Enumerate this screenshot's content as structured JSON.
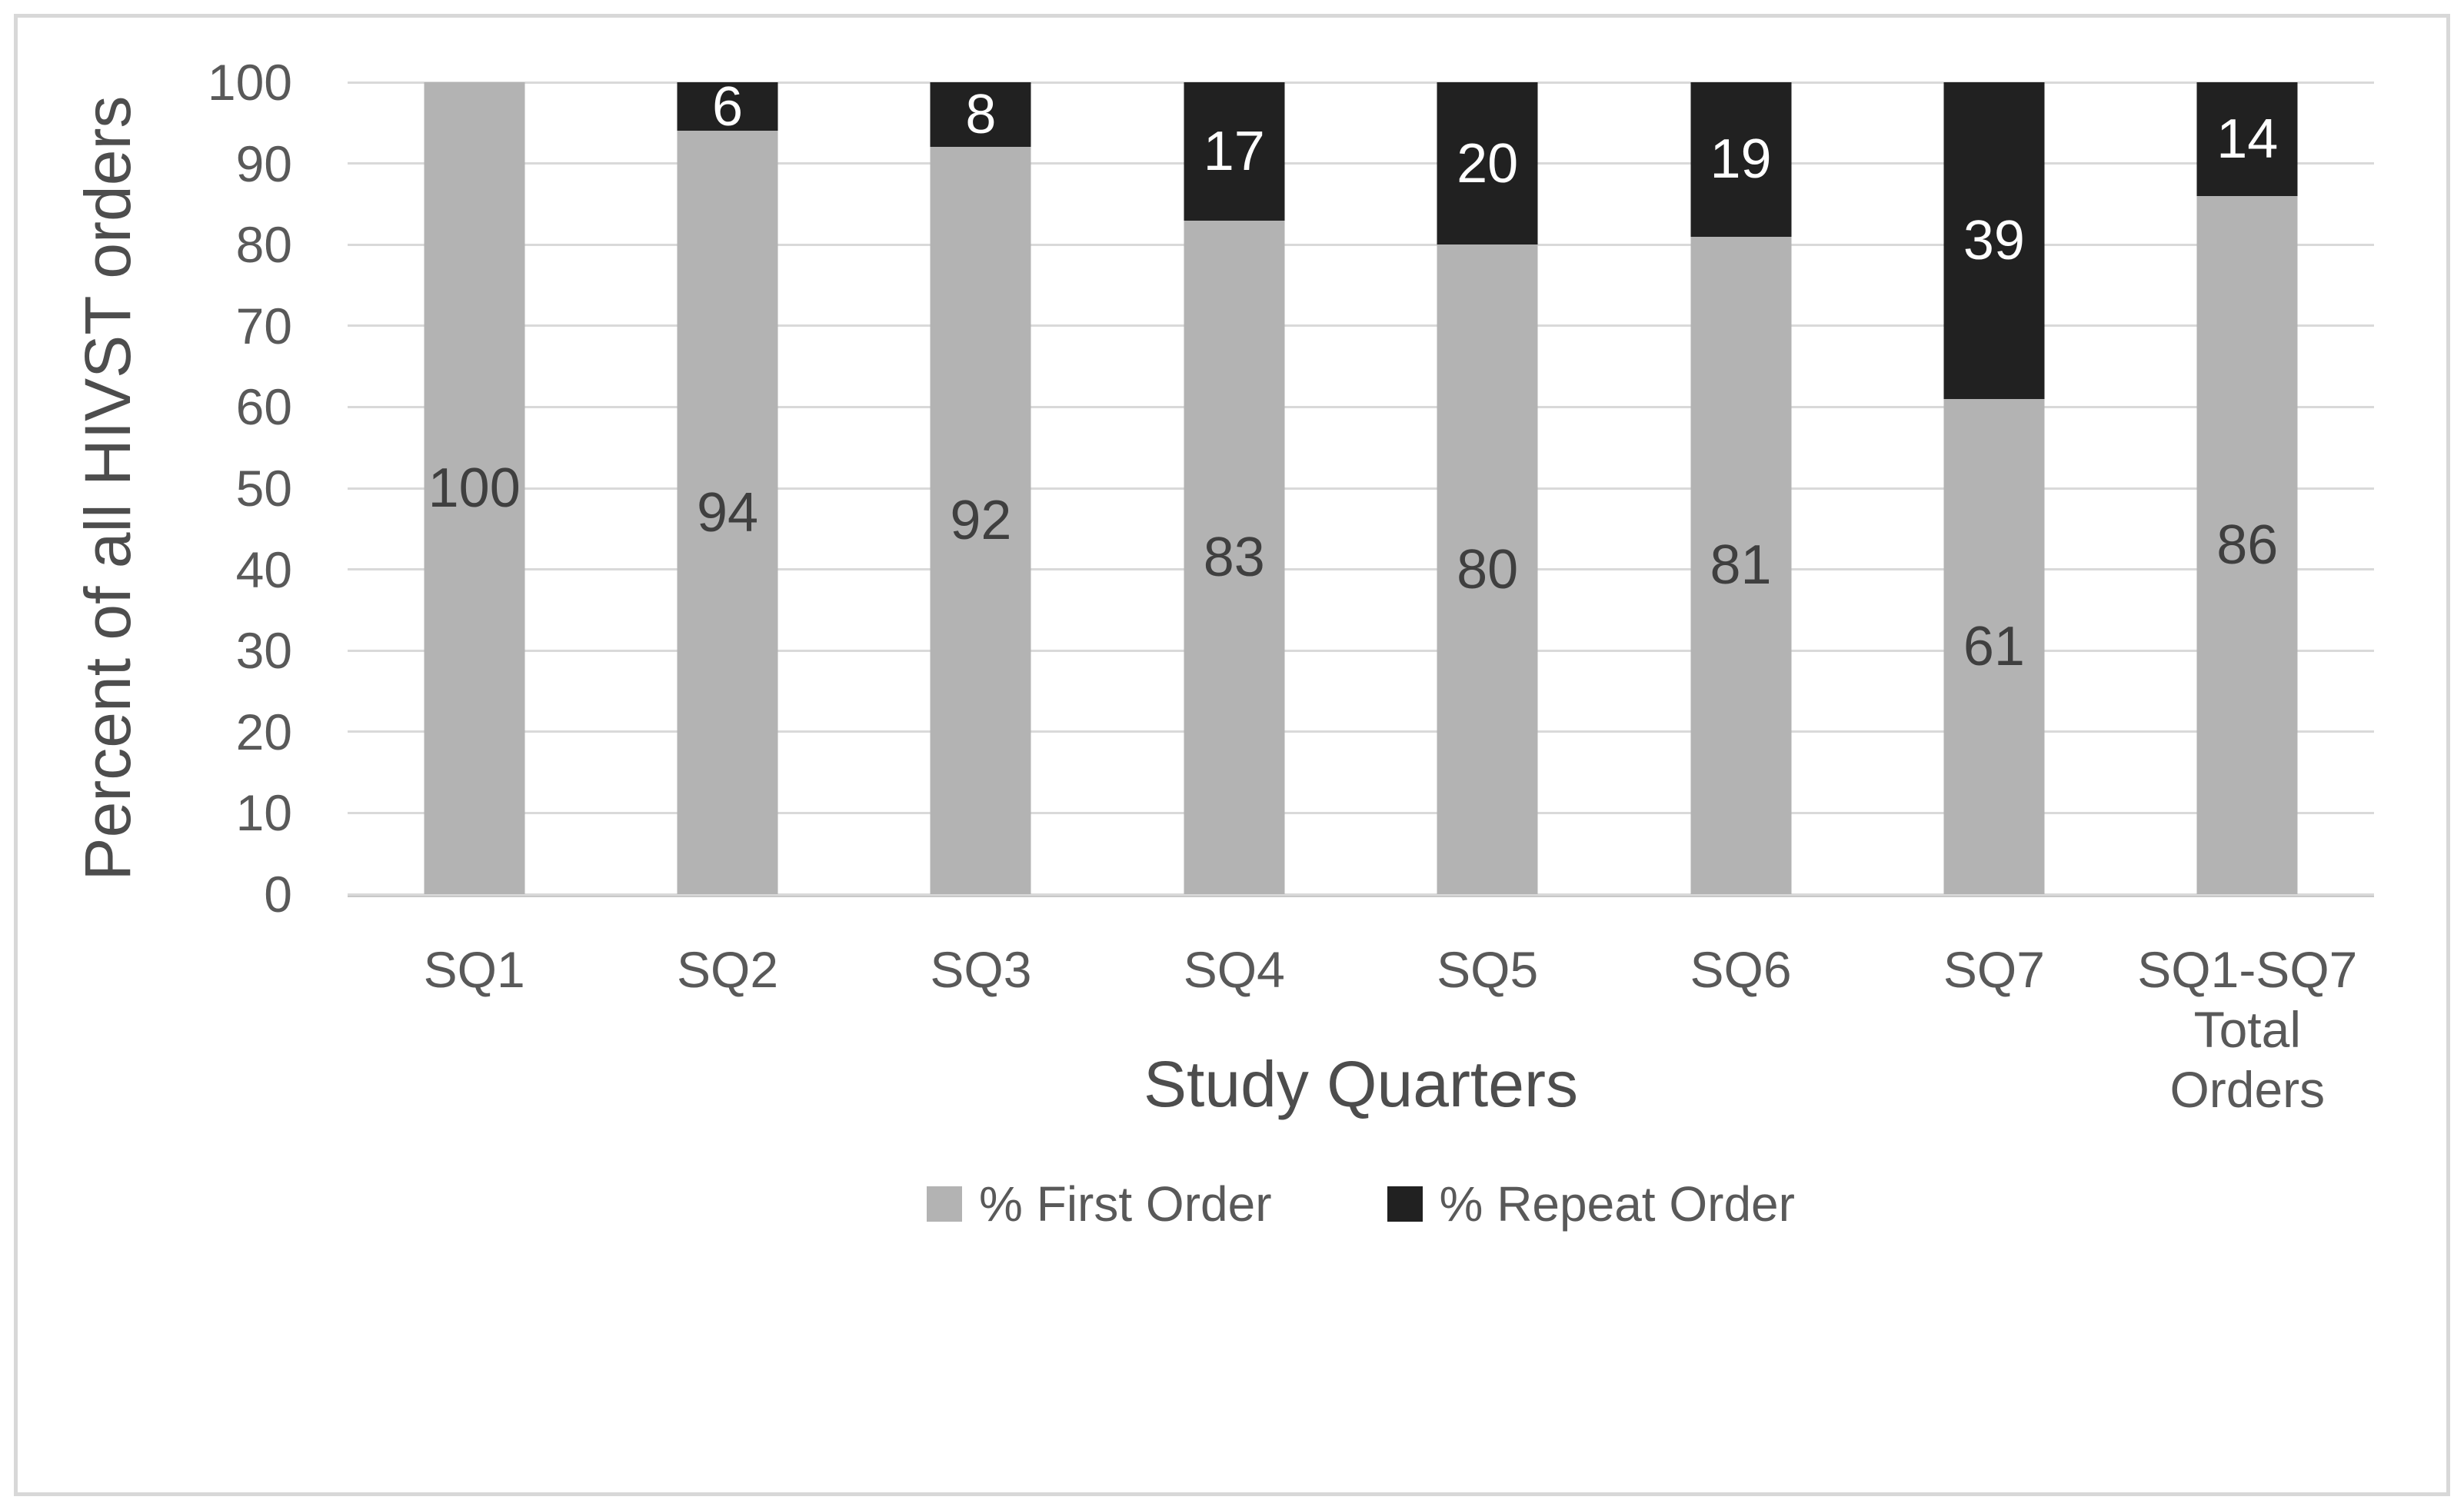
{
  "chart_data": {
    "type": "bar",
    "stacked": true,
    "title": "",
    "xlabel": "Study Quarters",
    "ylabel": "Percent of all HIVST orders",
    "categories": [
      "SQ1",
      "SQ2",
      "SQ3",
      "SQ4",
      "SQ5",
      "SQ6",
      "SQ7",
      "SQ1-SQ7\nTotal\nOrders"
    ],
    "series": [
      {
        "name": "% First Order",
        "color": "#b3b3b3",
        "label_color": "#3f3f3f",
        "values": [
          100,
          94,
          92,
          83,
          80,
          81,
          61,
          86
        ]
      },
      {
        "name": "% Repeat Order",
        "color": "#212121",
        "label_color": "#ffffff",
        "values": [
          0,
          6,
          8,
          17,
          20,
          19,
          39,
          14
        ]
      }
    ],
    "ylim": [
      0,
      100
    ],
    "yticks": [
      0,
      10,
      20,
      30,
      40,
      50,
      60,
      70,
      80,
      90,
      100
    ],
    "grid": "horizontal",
    "legend_position": "bottom",
    "data_labels": "inside-center"
  },
  "colors": {
    "gridline": "#d9d9d9",
    "axis_line": "#c8c8c8",
    "frame_border": "#d8d8d8",
    "tick_text": "#595959",
    "axis_title_text": "#4d4d4d",
    "background": "#ffffff"
  }
}
